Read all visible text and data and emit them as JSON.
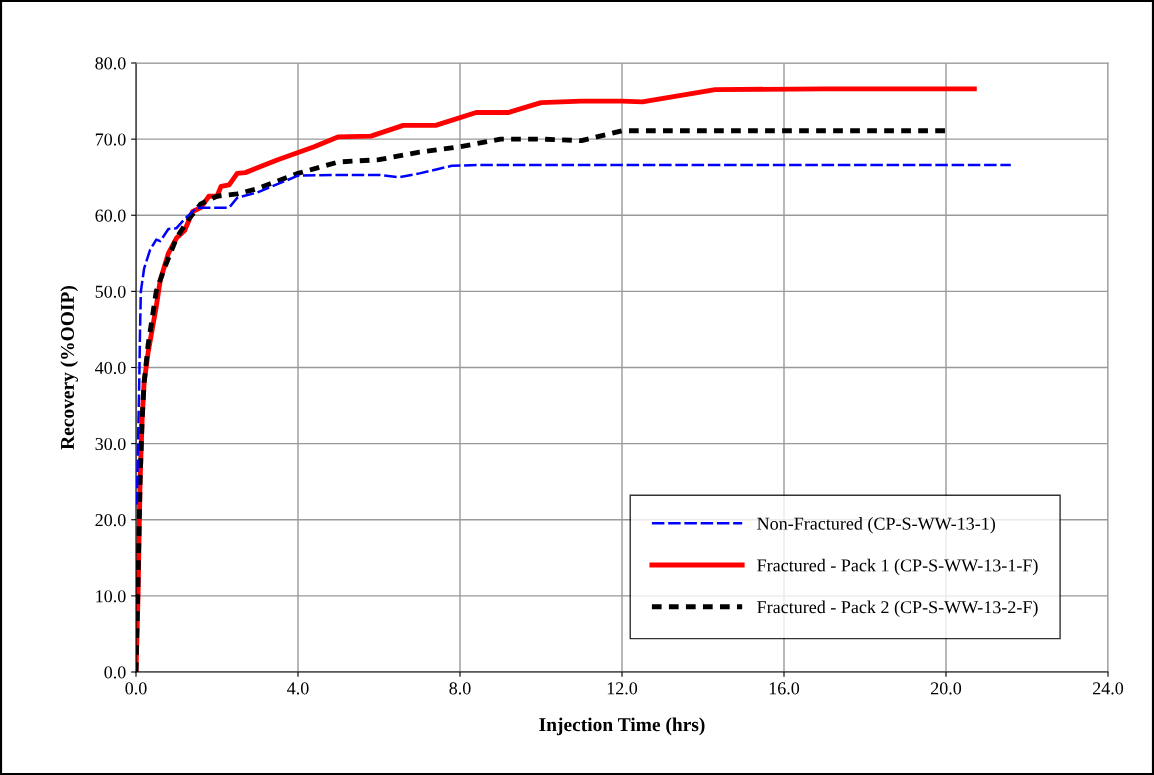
{
  "chart_data": {
    "type": "line",
    "xlabel": "Injection Time (hrs)",
    "ylabel": "Recovery (%OOIP)",
    "xlim": [
      0,
      24
    ],
    "ylim": [
      0,
      80
    ],
    "xticks": [
      {
        "value": 0,
        "label": "0.0"
      },
      {
        "value": 4,
        "label": "4.0"
      },
      {
        "value": 8,
        "label": "8.0"
      },
      {
        "value": 12,
        "label": "12.0"
      },
      {
        "value": 16,
        "label": "16.0"
      },
      {
        "value": 20,
        "label": "20.0"
      },
      {
        "value": 24,
        "label": "24.0"
      }
    ],
    "yticks": [
      {
        "value": 0,
        "label": "0.0"
      },
      {
        "value": 10,
        "label": "10.0"
      },
      {
        "value": 20,
        "label": "20.0"
      },
      {
        "value": 30,
        "label": "30.0"
      },
      {
        "value": 40,
        "label": "40.0"
      },
      {
        "value": 50,
        "label": "50.0"
      },
      {
        "value": 60,
        "label": "60.0"
      },
      {
        "value": 70,
        "label": "70.0"
      },
      {
        "value": 80,
        "label": "80.0"
      }
    ],
    "grid": true,
    "legend": "bottom right",
    "marker": "none",
    "series": [
      {
        "name": "Non-Fractured (CP-S-WW-13-1)",
        "color": "#0000ff",
        "line_style": "dashed",
        "x": [
          0.02,
          0.05,
          0.08,
          0.1,
          0.12,
          0.2,
          0.35,
          0.5,
          0.6,
          0.8,
          1.0,
          1.2,
          1.5,
          2.0,
          2.3,
          2.5,
          3,
          4,
          5,
          6,
          6.5,
          7,
          7.8,
          8.5,
          12,
          16,
          21.6
        ],
        "values": [
          22,
          30,
          38,
          45,
          50,
          53,
          55.5,
          56.8,
          56.6,
          58.2,
          58.3,
          59.5,
          61,
          61,
          61,
          62.3,
          63,
          65.2,
          65.3,
          65.3,
          65,
          65.5,
          66.5,
          66.6,
          66.6,
          66.6,
          66.6
        ]
      },
      {
        "name": "Fractured - Pack 1 (CP-S-WW-13-1-F)",
        "color": "#ff0000",
        "line_style": "solid",
        "x": [
          0,
          0.05,
          0.1,
          0.15,
          0.2,
          0.3,
          0.4,
          0.5,
          0.6,
          0.8,
          1.0,
          1.2,
          1.4,
          1.6,
          1.8,
          2.0,
          2.1,
          2.3,
          2.5,
          2.7,
          3.5,
          4.4,
          5,
          5.8,
          6.6,
          7.4,
          8.4,
          9.2,
          10,
          11,
          12,
          12.5,
          14.3,
          17,
          20.7
        ],
        "values": [
          0,
          10,
          25,
          33,
          38,
          42,
          45,
          48,
          51.5,
          55,
          57,
          58,
          60.5,
          61,
          62.5,
          62.5,
          63.8,
          64,
          65.5,
          65.6,
          67.3,
          69,
          70.3,
          70.4,
          71.8,
          71.8,
          73.5,
          73.5,
          74.8,
          75,
          75,
          74.9,
          76.5,
          76.6,
          76.6
        ]
      },
      {
        "name": "Fractured - Pack 2 (CP-S-WW-13-2-F)",
        "color": "#000000",
        "line_style": "dashed",
        "x": [
          0,
          0.05,
          0.1,
          0.15,
          0.2,
          0.3,
          0.5,
          0.7,
          1.0,
          1.3,
          1.6,
          2.0,
          2.5,
          3,
          4,
          5,
          6,
          7,
          8,
          9,
          10,
          11,
          12,
          16,
          20
        ],
        "values": [
          0,
          12,
          25,
          33,
          38,
          43,
          50,
          53,
          57,
          59.5,
          61.5,
          62.5,
          62.8,
          63.5,
          65.5,
          67,
          67.3,
          68.3,
          69,
          70,
          70,
          69.8,
          71.1,
          71.1,
          71.1
        ]
      }
    ]
  }
}
